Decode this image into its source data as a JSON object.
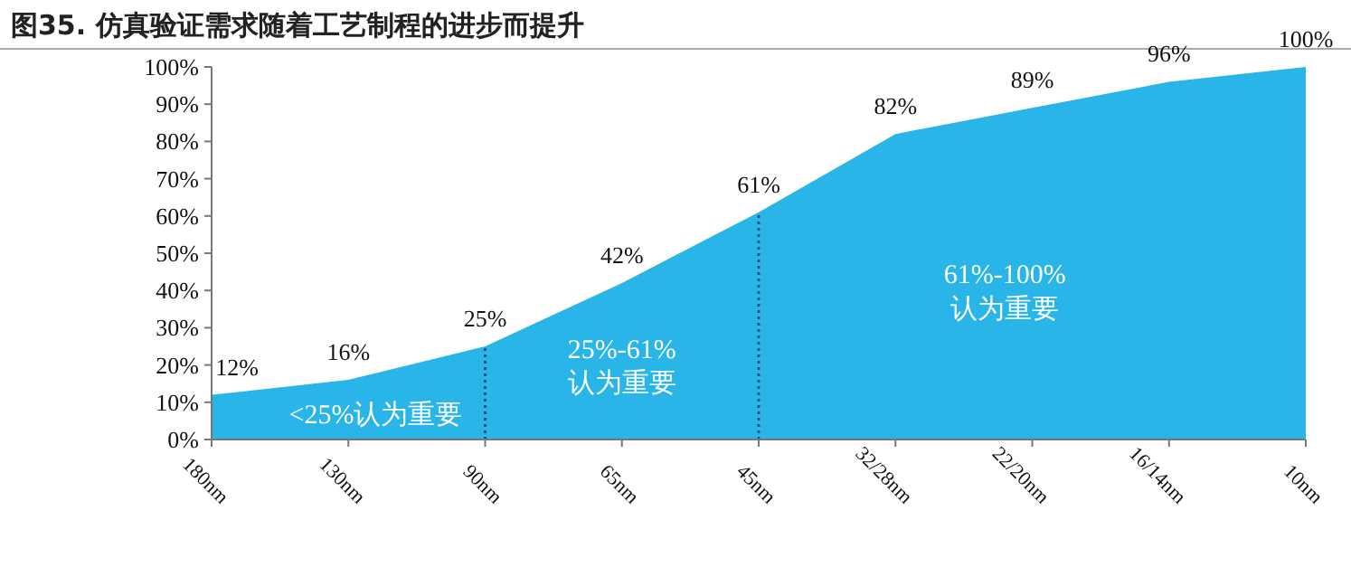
{
  "chart_data": {
    "type": "area",
    "title": "图35. 仿真验证需求随着工艺制程的进步而提升",
    "categories": [
      "180nm",
      "130nm",
      "90nm",
      "65nm",
      "45nm",
      "32/28nm",
      "22/20nm",
      "16/14nm",
      "10nm"
    ],
    "series": [
      {
        "color": "#29b5e8",
        "values": [
          12,
          16,
          25,
          42,
          61,
          82,
          89,
          96,
          100
        ],
        "value_labels": [
          "12%",
          "16%",
          "25%",
          "42%",
          "61%",
          "82%",
          "89%",
          "96%",
          "100%"
        ]
      }
    ],
    "ylim": [
      0,
      100
    ],
    "yticks": [
      {
        "value": 0,
        "label": "0%"
      },
      {
        "value": 10,
        "label": "10%"
      },
      {
        "value": 20,
        "label": "20%"
      },
      {
        "value": 30,
        "label": "30%"
      },
      {
        "value": 40,
        "label": "40%"
      },
      {
        "value": 50,
        "label": "50%"
      },
      {
        "value": 60,
        "label": "60%"
      },
      {
        "value": 70,
        "label": "70%"
      },
      {
        "value": 80,
        "label": "80%"
      },
      {
        "value": 90,
        "label": "90%"
      },
      {
        "value": 100,
        "label": "100%"
      }
    ],
    "ref_lines": [
      {
        "axis": "x",
        "value": "90nm",
        "color": "#1f3f7a",
        "line_style": "dotted"
      },
      {
        "axis": "x",
        "value": "45nm",
        "color": "#1f3f7a",
        "line_style": "dotted"
      }
    ],
    "annotations": [
      "<25%认为重要",
      "25%-61%\n认为重要",
      "61%-100%\n认为重要"
    ],
    "grid": false
  }
}
